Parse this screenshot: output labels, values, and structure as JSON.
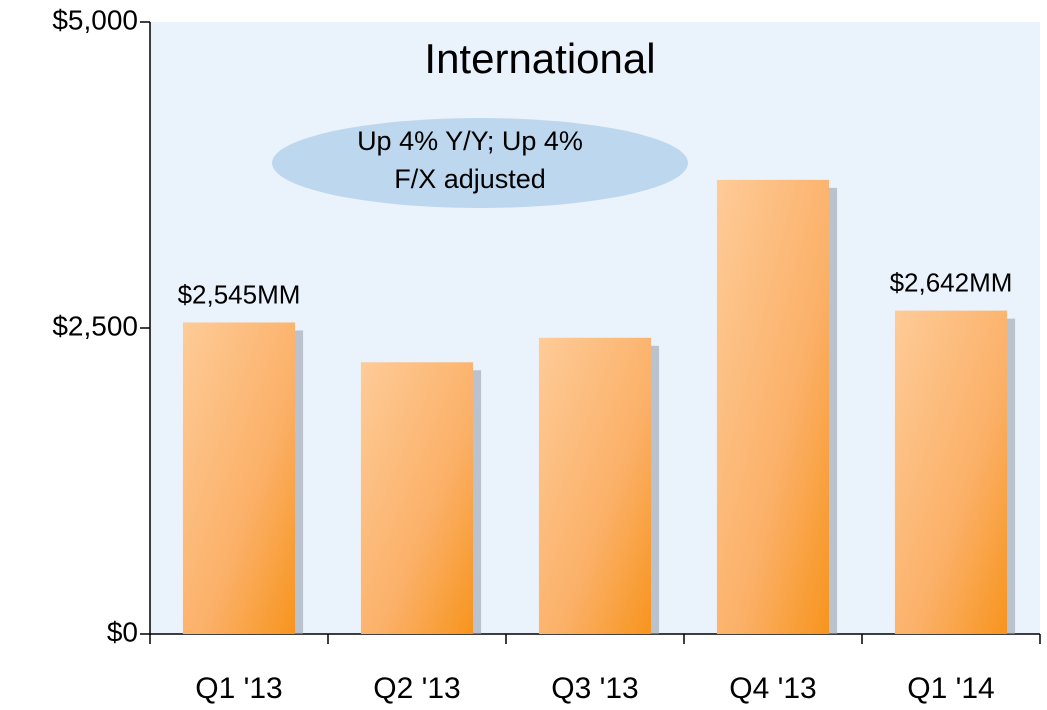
{
  "chart_data": {
    "type": "bar",
    "title": "International",
    "annotation": [
      "Up 4% Y/Y; Up 4%",
      "F/X adjusted"
    ],
    "categories": [
      "Q1 '13",
      "Q2 '13",
      "Q3 '13",
      "Q4 '13",
      "Q1 '14"
    ],
    "values": [
      2545,
      2220,
      2420,
      3710,
      2642
    ],
    "value_labels": [
      "$2,545MM",
      null,
      null,
      null,
      "$2,642MM"
    ],
    "color": "#f7941d",
    "ylim": [
      0,
      5000
    ],
    "yticks": [
      {
        "value": 0,
        "label": "$0"
      },
      {
        "value": 2500,
        "label": "$2,500"
      },
      {
        "value": 5000,
        "label": "$5,000"
      }
    ],
    "grid": false
  }
}
